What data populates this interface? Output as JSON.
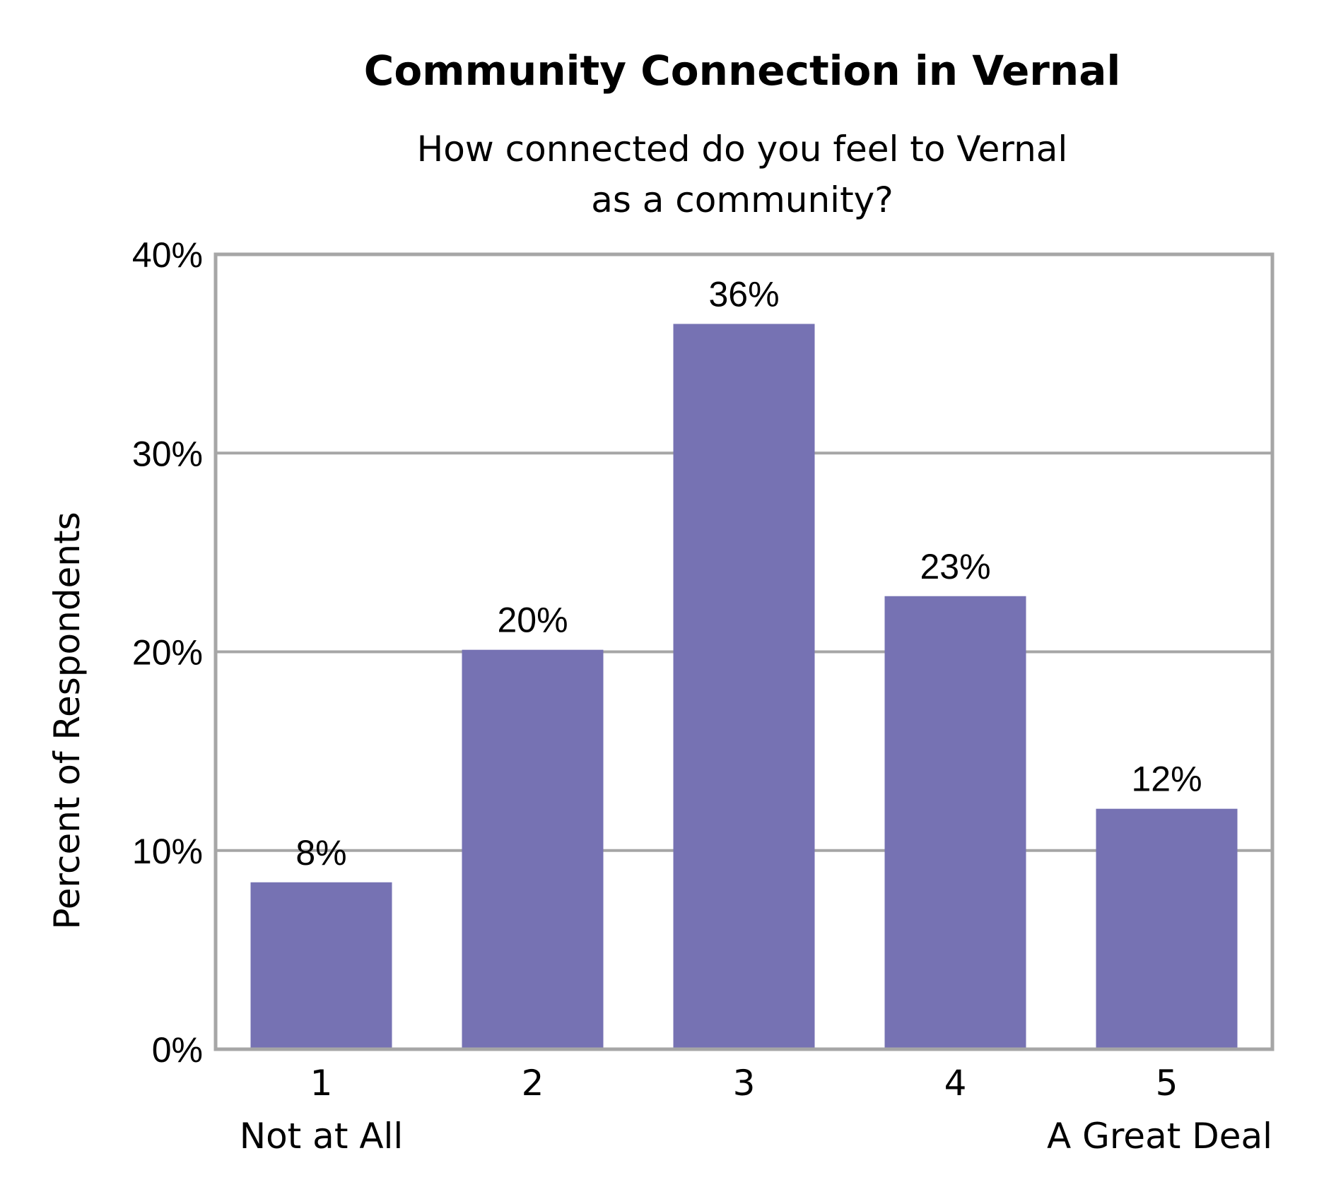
{
  "chart_data": {
    "type": "bar",
    "title": "Community Connection in Vernal",
    "subtitle_lines": [
      "How connected do you feel to Vernal",
      "as a community?"
    ],
    "ylabel": "Percent of Respondents",
    "xlabel": "",
    "categories": [
      "1",
      "2",
      "3",
      "4",
      "5"
    ],
    "category_sublabels": [
      "Not at All",
      "",
      "",
      "",
      "A Great Deal"
    ],
    "values": [
      8.4,
      20.1,
      36.5,
      22.8,
      12.1
    ],
    "data_labels": [
      "8%",
      "20%",
      "36%",
      "23%",
      "12%"
    ],
    "ylim": [
      0,
      40
    ],
    "yticks": [
      0,
      10,
      20,
      30,
      40
    ],
    "ytick_labels": [
      "0%",
      "10%",
      "20%",
      "30%",
      "40%"
    ],
    "grid": true,
    "legend": "none",
    "colors": {
      "bar": "#7672b3",
      "grid": "#a6a6a6",
      "frame": "#a6a6a6"
    }
  }
}
